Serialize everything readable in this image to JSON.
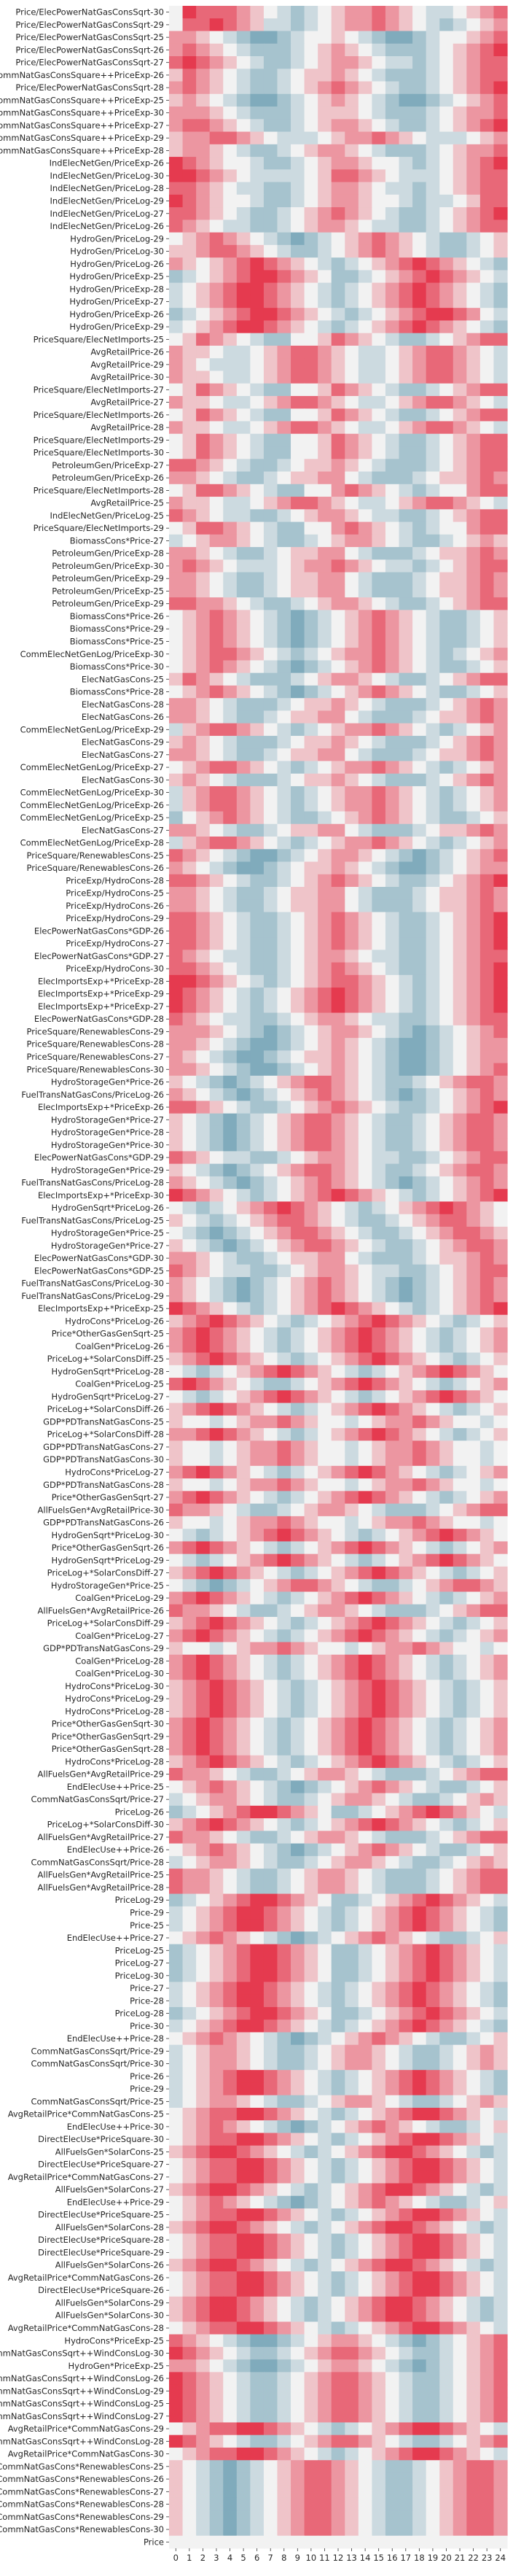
{
  "chart_data": {
    "type": "heatmap",
    "title": "",
    "xlabel": "",
    "ylabel": "",
    "x": [
      "0",
      "1",
      "2",
      "3",
      "4",
      "5",
      "6",
      "7",
      "8",
      "9",
      "10",
      "11",
      "12",
      "13",
      "14",
      "15",
      "16",
      "17",
      "18",
      "19",
      "20",
      "21",
      "22",
      "23",
      "24"
    ],
    "y": [
      "Price/ElecPowerNatGasConsSqrt-30",
      "Price/ElecPowerNatGasConsSqrt-29",
      "Price/ElecPowerNatGasConsSqrt-25",
      "Price/ElecPowerNatGasConsSqrt-26",
      "Price/ElecPowerNatGasConsSqrt-27",
      "CommNatGasConsSquare++PriceExp-26",
      "Price/ElecPowerNatGasConsSqrt-28",
      "CommNatGasConsSquare++PriceExp-25",
      "CommNatGasConsSquare++PriceExp-30",
      "CommNatGasConsSquare++PriceExp-27",
      "CommNatGasConsSquare++PriceExp-29",
      "CommNatGasConsSquare++PriceExp-28",
      "IndElecNetGen/PriceExp-26",
      "IndElecNetGen/PriceLog-30",
      "IndElecNetGen/PriceLog-28",
      "IndElecNetGen/PriceLog-29",
      "IndElecNetGen/PriceLog-27",
      "IndElecNetGen/PriceLog-26",
      "HydroGen/PriceLog-29",
      "HydroGen/PriceLog-30",
      "HydroGen/PriceLog-26",
      "HydroGen/PriceExp-25",
      "HydroGen/PriceExp-28",
      "HydroGen/PriceExp-27",
      "HydroGen/PriceExp-26",
      "HydroGen/PriceExp-29",
      "PriceSquare/ElecNetImports-25",
      "AvgRetailPrice-26",
      "AvgRetailPrice-29",
      "AvgRetailPrice-30",
      "PriceSquare/ElecNetImports-27",
      "AvgRetailPrice-27",
      "PriceSquare/ElecNetImports-26",
      "AvgRetailPrice-28",
      "PriceSquare/ElecNetImports-29",
      "PriceSquare/ElecNetImports-30",
      "PetroleumGen/PriceExp-27",
      "PetroleumGen/PriceExp-26",
      "PriceSquare/ElecNetImports-28",
      "AvgRetailPrice-25",
      "IndElecNetGen/PriceLog-25",
      "PriceSquare/ElecNetImports-29",
      "BiomassCons*Price-27",
      "PetroleumGen/PriceExp-28",
      "PetroleumGen/PriceExp-30",
      "PetroleumGen/PriceExp-29",
      "PetroleumGen/PriceExp-25",
      "PetroleumGen/PriceExp-29",
      "BiomassCons*Price-26",
      "BiomassCons*Price-29",
      "BiomassCons*Price-25",
      "CommElecNetGenLog/PriceExp-30",
      "BiomassCons*Price-30",
      "ElecNatGasCons-25",
      "BiomassCons*Price-28",
      "ElecNatGasCons-28",
      "ElecNatGasCons-26",
      "CommElecNetGenLog/PriceExp-29",
      "ElecNatGasCons-29",
      "ElecNatGasCons-27",
      "CommElecNetGenLog/PriceExp-27",
      "ElecNatGasCons-30",
      "CommElecNetGenLog/PriceExp-30",
      "CommElecNetGenLog/PriceExp-26",
      "CommElecNetGenLog/PriceExp-25",
      "ElecNatGasCons-27",
      "CommElecNetGenLog/PriceExp-28",
      "PriceSquare/RenewablesCons-25",
      "PriceSquare/RenewablesCons-26",
      "PriceExp/HydroCons-28",
      "PriceExp/HydroCons-25",
      "PriceExp/HydroCons-26",
      "PriceExp/HydroCons-29",
      "ElecPowerNatGasCons*GDP-26",
      "PriceExp/HydroCons-27",
      "ElecPowerNatGasCons*GDP-27",
      "PriceExp/HydroCons-30",
      "ElecImportsExp+*PriceExp-28",
      "ElecImportsExp+*PriceExp-29",
      "ElecImportsExp+*PriceExp-27",
      "ElecPowerNatGasCons*GDP-28",
      "PriceSquare/RenewablesCons-29",
      "PriceSquare/RenewablesCons-28",
      "PriceSquare/RenewablesCons-27",
      "PriceSquare/RenewablesCons-30",
      "HydroStorageGen*Price-26",
      "FuelTransNatGasCons/PriceLog-26",
      "ElecImportsExp+*PriceExp-26",
      "HydroStorageGen*Price-27",
      "HydroStorageGen*Price-28",
      "HydroStorageGen*Price-30",
      "ElecPowerNatGasCons*GDP-29",
      "HydroStorageGen*Price-29",
      "FuelTransNatGasCons/PriceLog-28",
      "ElecImportsExp+*PriceExp-30",
      "HydroGenSqrt*PriceLog-26",
      "FuelTransNatGasCons/PriceLog-25",
      "HydroStorageGen*Price-25",
      "HydroStorageGen*Price-27",
      "ElecPowerNatGasCons*GDP-30",
      "ElecPowerNatGasCons*GDP-25",
      "FuelTransNatGasCons/PriceLog-30",
      "FuelTransNatGasCons/PriceLog-29",
      "ElecImportsExp+*PriceExp-25",
      "HydroCons*PriceLog-26",
      "Price*OtherGasGenSqrt-25",
      "CoalGen*PriceLog-26",
      "PriceLog+*SolarConsDiff-25",
      "HydroGenSqrt*PriceLog-28",
      "CoalGen*PriceLog-25",
      "HydroGenSqrt*PriceLog-27",
      "PriceLog+*SolarConsDiff-26",
      "GDP*PDTransNatGasCons-25",
      "PriceLog+*SolarConsDiff-28",
      "GDP*PDTransNatGasCons-27",
      "GDP*PDTransNatGasCons-30",
      "HydroCons*PriceLog-27",
      "GDP*PDTransNatGasCons-28",
      "Price*OtherGasGenSqrt-27",
      "AllFuelsGen*AvgRetailPrice-30",
      "GDP*PDTransNatGasCons-26",
      "HydroGenSqrt*PriceLog-30",
      "Price*OtherGasGenSqrt-26",
      "HydroGenSqrt*PriceLog-29",
      "PriceLog+*SolarConsDiff-27",
      "HydroStorageGen*Price-25",
      "CoalGen*PriceLog-29",
      "AllFuelsGen*AvgRetailPrice-26",
      "PriceLog+*SolarConsDiff-29",
      "CoalGen*PriceLog-27",
      "GDP*PDTransNatGasCons-29",
      "CoalGen*PriceLog-28",
      "CoalGen*PriceLog-30",
      "HydroCons*PriceLog-30",
      "HydroCons*PriceLog-29",
      "HydroCons*PriceLog-28",
      "Price*OtherGasGenSqrt-30",
      "Price*OtherGasGenSqrt-29",
      "Price*OtherGasGenSqrt-28",
      "HydroCons*PriceLog-28",
      "AllFuelsGen*AvgRetailPrice-29",
      "EndElecUse++Price-25",
      "CommNatGasConsSqrt/Price-27",
      "PriceLog-26",
      "PriceLog+*SolarConsDiff-30",
      "AllFuelsGen*AvgRetailPrice-27",
      "EndElecUse++Price-26",
      "CommNatGasConsSqrt/Price-28",
      "AllFuelsGen*AvgRetailPrice-25",
      "AllFuelsGen*AvgRetailPrice-28",
      "PriceLog-29",
      "Price-29",
      "Price-25",
      "EndElecUse++Price-27",
      "PriceLog-25",
      "PriceLog-27",
      "PriceLog-30",
      "Price-27",
      "Price-28",
      "PriceLog-28",
      "Price-30",
      "EndElecUse++Price-28",
      "CommNatGasConsSqrt/Price-29",
      "CommNatGasConsSqrt/Price-30",
      "Price-26",
      "Price-29",
      "CommNatGasConsSqrt/Price-25",
      "AvgRetailPrice*CommNatGasCons-25",
      "EndElecUse++Price-30",
      "DirectElecUse*PriceSquare-30",
      "AllFuelsGen*SolarCons-25",
      "DirectElecUse*PriceSquare-27",
      "AvgRetailPrice*CommNatGasCons-27",
      "AllFuelsGen*SolarCons-27",
      "EndElecUse++Price-29",
      "DirectElecUse*PriceSquare-25",
      "AllFuelsGen*SolarCons-28",
      "DirectElecUse*PriceSquare-28",
      "DirectElecUse*PriceSquare-29",
      "AllFuelsGen*SolarCons-26",
      "AvgRetailPrice*CommNatGasCons-26",
      "DirectElecUse*PriceSquare-26",
      "AllFuelsGen*SolarCons-29",
      "AllFuelsGen*SolarCons-30",
      "AvgRetailPrice*CommNatGasCons-28",
      "HydroCons*PriceExp-25",
      "CommNatGasConsSqrt++WindConsLog-30",
      "HydroGen*PriceExp-25",
      "CommNatGasConsSqrt++WindConsLog-26",
      "CommNatGasConsSqrt++WindConsLog-29",
      "CommNatGasConsSqrt++WindConsLog-25",
      "CommNatGasConsSqrt++WindConsLog-27",
      "AvgRetailPrice*CommNatGasCons-29",
      "CommNatGasConsSqrt++WindConsLog-28",
      "AvgRetailPrice*CommNatGasCons-30",
      "CommNatGasCons*RenewablesCons-25",
      "CommNatGasCons*RenewablesCons-26",
      "CommNatGasCons*RenewablesCons-27",
      "CommNatGasCons*RenewablesCons-28",
      "CommNatGasCons*RenewablesCons-29",
      "CommNatGasCons*RenewablesCons-30",
      "Price"
    ],
    "colormap": {
      "negative": "#5a93aa",
      "neutral": "#f2f2f2",
      "positive": "#e53a4f"
    },
    "value_range": [
      -1,
      1
    ],
    "values_encoding": "rows of 25 digits 0-8, 0 = -1 (blue), 4 = 0 (white), 8 = +1 (red)",
    "rows": [
      "4877765432345667654334567",
      "4778765332345667654323456",
      "6654321123445432112344567",
      "6765432223456543222345678",
      "7876543223456654332345677",
      "5765432234556543222345677",
      "6765432234567654322345678",
      "5654321123456543211234567",
      "6665432223455543222345667",
      "6776543223456654322345678",
      "5667765433345667654333456",
      "5665432234566543222345667",
      "8765443223456654432345678",
      "8876543333457765433345677",
      "7765433223456654332345677",
      "8765443223456654432334577",
      "7765432234567654322345678",
      "7654332234566543322345677",
      "4567654321234567654322345",
      "5567765432234567654322345",
      "6545678765432345678765432",
      "2345678876542234567876543",
      "3456788765432345678765432",
      "3456788765432345678765432",
      "2345678876543234567887643",
      "3456788765432345678765432",
      "4576543224457654322345677",
      "6554334567765433456776543",
      "6543334567765433456776543",
      "6554334567765433456776543",
      "4576543224457654322345677",
      "6554334567765433456776543",
      "4576543224457654322345677",
      "6554334567765433456776543",
      "4576543224457654322345677",
      "4576543224457654322345677",
      "7765432234556543222345677",
      "6654322345566432223455676",
      "4577654322446765432344677",
      "6554334567765433456776543",
      "7654332234566543322345677",
      "4577654322446765432344677",
      "3456654322345665432234565",
      "6654322345566432223455676",
      "6765433345667654332345677",
      "6654322345566432223455676",
      "6654322345566432223455676",
      "7766543223456654322345677",
      "4567654321234567654322345",
      "4567654321234567654322345",
      "4567654321234567654322345",
      "4567765432345667654323456",
      "4567654321234567654322345",
      "5765432223456654322345677",
      "4567654321234567654322345",
      "6654322234556543222345676",
      "6654322345566432223455676",
      "3567765432345667654323456",
      "5654322234556543222345676",
      "6654322345566432223455676",
      "4567765432345667654323456",
      "5654322234556543222345676",
      "3567765432345667654323456",
      "3567765432345667654323456",
      "2456765432234567654322345",
      "6654322345566432223455676",
      "3567765432345667654323456",
      "7654321123456654321234567",
      "6543211234556543211234566",
      "7765432234567654322345678",
      "6654322345566432223455676",
      "6654322345566432223455676",
      "7765432234567654322345678",
      "7765432234567654322345678",
      "7765432234567654322345678",
      "7654332234566543322345677",
      "7765432234567654322345678",
      "8876543234567765432345678",
      "8765432345678765432345678",
      "8765432345678765432345678",
      "7654332234566543322345677",
      "6665432123456654321234567",
      "6654321123456543211234566",
      "6543211234556543211234566",
      "6654321123456543211234567",
      "5432123456776543223456776",
      "6543212345676543212345676",
      "7765432234567654322345678",
      "5432123456776543223456776",
      "5432123456776543223456776",
      "5432123456776543223456776",
      "7654332234566543322345677",
      "5432123456776543223456776",
      "6543212345676543212345676",
      "8765432345678765432345678",
      "4323456787654323456787654",
      "5432345677654322345677654",
      "4321234567765432234567765",
      "5432123456776543223456776",
      "6654322345566432223455676",
      "7654332234566543322345677",
      "6543212345676543212345676",
      "6543212345676543212345676",
      "8765432345678765432345678",
      "5678765432345678765432345",
      "6787654323456787654323456",
      "6787654323456787654323456",
      "5678765432345678765432345",
      "4323456787654323456787654",
      "7876543223456787654323456",
      "4323456787654323456787654",
      "5678765432345678765432345",
      "5443456676544345667654434",
      "6678765432345678765432345",
      "5443456676544345667654434",
      "5443456676544345667654434",
      "6787654323456787654323456",
      "5443456676544345667654434",
      "6787654323456787654323456",
      "7665432234566543222345677",
      "5443456676544345667654434",
      "4323456787654323456787654",
      "6787654323456787654323456",
      "4323456787654323456787654",
      "5678765432345678765432345",
      "4321234567765432234567765",
      "6787654323456787654323456",
      "7665432234566543222345677",
      "5678765432345678765432345",
      "6787654323456787654323456",
      "5443456676544345667654434",
      "6787654323456787654323456",
      "6787654323456787654323456",
      "5678765432345678765432345",
      "5678765432345678765432345",
      "5678765432345678765432345",
      "6787654323456787654323456",
      "6787654323456787654323456",
      "6787654323456787654323456",
      "5678765432345678765432345",
      "7665432234566543222345677",
      "4567654321234567654322345",
      "3456654322345665432234565",
      "2345678876542234567876543",
      "5678765432345678765432345",
      "7665432234566543222345677",
      "4567654321234567654322345",
      "3456654322345665432234565",
      "7665432234566543222345677",
      "7665432234566543222345677",
      "2345678876542234567876543",
      "3456788765432345678765432",
      "3456788765432345678765432",
      "4567654321234567654322345",
      "2345678876542234567876543",
      "2345678876542234567876543",
      "2345678876542234567876543",
      "3456788765432345678765432",
      "3456788765432345678765432",
      "2345678876542234567876543",
      "3456788765432345678765432",
      "4567654321234567654322345",
      "3456654322345665432234565",
      "3456654322345665432234565",
      "3456788765432345678765432",
      "3456788765432345678765432",
      "3456654322345665432234565",
      "4567788765432345678876543",
      "4567654321234567654322345",
      "4567788765432345678876543",
      "5678876543234567887654323",
      "4567788765432345678876543",
      "4567788765432345678876543",
      "5678876543234567887654323",
      "4567654321234567654322345",
      "4567788765432345678876543",
      "5678876543234567887654323",
      "4567788765432345678876543",
      "4567788765432345678876543",
      "5678876543234567887654323",
      "4567788765432345678876543",
      "4567788765432345678876543",
      "5678876543234567887654323",
      "5678876543234567887654323",
      "4567788765432345678876543",
      "7654321123456654321234567",
      "8765432234567765432234567",
      "6654321123456654321234567",
      "8765432234567765432234567",
      "8765432234567765432234567",
      "8765432234567765432234567",
      "8765432234567765432234567",
      "4567788765432345678876543",
      "8765432234567765432234567",
      "4567788765432345678876543",
      "5432123456776543223456776",
      "5432123456776543223456776",
      "5432123456776543223456776",
      "5432123456776543223456776",
      "5432123456776543223456776",
      "5432123456776543223456776",
      "4444444444444444444444444"
    ]
  }
}
